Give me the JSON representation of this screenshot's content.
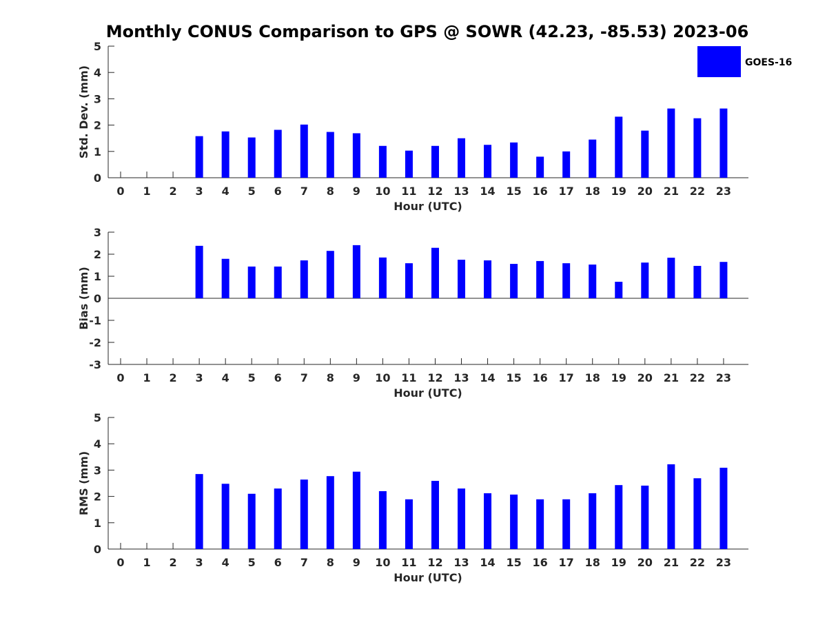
{
  "colors": {
    "bar": "#0000ff",
    "axis": "#262626",
    "background": "#ffffff"
  },
  "legend": {
    "label": "GOES-16",
    "color": "#0000ff"
  },
  "chart_data": [
    {
      "type": "bar",
      "title": "Monthly CONUS Comparison to GPS @ SOWR (42.23, -85.53) 2023-06",
      "xlabel": "Hour (UTC)",
      "ylabel": "Std. Dev. (mm)",
      "ylim": [
        0,
        5
      ],
      "yticks": [
        0,
        1,
        2,
        3,
        4,
        5
      ],
      "categories": [
        "0",
        "1",
        "2",
        "3",
        "4",
        "5",
        "6",
        "7",
        "8",
        "9",
        "10",
        "11",
        "12",
        "13",
        "14",
        "15",
        "16",
        "17",
        "18",
        "19",
        "20",
        "21",
        "22",
        "23"
      ],
      "series": [
        {
          "name": "GOES-16",
          "values": [
            null,
            null,
            null,
            1.58,
            1.76,
            1.53,
            1.82,
            2.02,
            1.74,
            1.69,
            1.21,
            1.03,
            1.21,
            1.5,
            1.25,
            1.34,
            0.8,
            1.0,
            1.45,
            2.32,
            1.79,
            2.63,
            2.26,
            2.63
          ]
        }
      ]
    },
    {
      "type": "bar",
      "xlabel": "Hour (UTC)",
      "ylabel": "Bias (mm)",
      "ylim": [
        -3,
        3
      ],
      "yticks": [
        -3,
        -2,
        -1,
        0,
        1,
        2,
        3
      ],
      "categories": [
        "0",
        "1",
        "2",
        "3",
        "4",
        "5",
        "6",
        "7",
        "8",
        "9",
        "10",
        "11",
        "12",
        "13",
        "14",
        "15",
        "16",
        "17",
        "18",
        "19",
        "20",
        "21",
        "22",
        "23"
      ],
      "series": [
        {
          "name": "GOES-16",
          "values": [
            null,
            null,
            null,
            2.38,
            1.79,
            1.44,
            1.44,
            1.72,
            2.15,
            2.41,
            1.85,
            1.59,
            2.29,
            1.75,
            1.72,
            1.56,
            1.69,
            1.59,
            1.53,
            0.75,
            1.62,
            1.84,
            1.47,
            1.65
          ]
        }
      ]
    },
    {
      "type": "bar",
      "xlabel": "Hour (UTC)",
      "ylabel": "RMS (mm)",
      "ylim": [
        0,
        5
      ],
      "yticks": [
        0,
        1,
        2,
        3,
        4,
        5
      ],
      "categories": [
        "0",
        "1",
        "2",
        "3",
        "4",
        "5",
        "6",
        "7",
        "8",
        "9",
        "10",
        "11",
        "12",
        "13",
        "14",
        "15",
        "16",
        "17",
        "18",
        "19",
        "20",
        "21",
        "22",
        "23"
      ],
      "series": [
        {
          "name": "GOES-16",
          "values": [
            null,
            null,
            null,
            2.85,
            2.48,
            2.1,
            2.3,
            2.64,
            2.77,
            2.94,
            2.2,
            1.89,
            2.59,
            2.3,
            2.12,
            2.07,
            1.89,
            1.89,
            2.12,
            2.43,
            2.41,
            3.22,
            2.69,
            3.09
          ]
        }
      ]
    }
  ]
}
